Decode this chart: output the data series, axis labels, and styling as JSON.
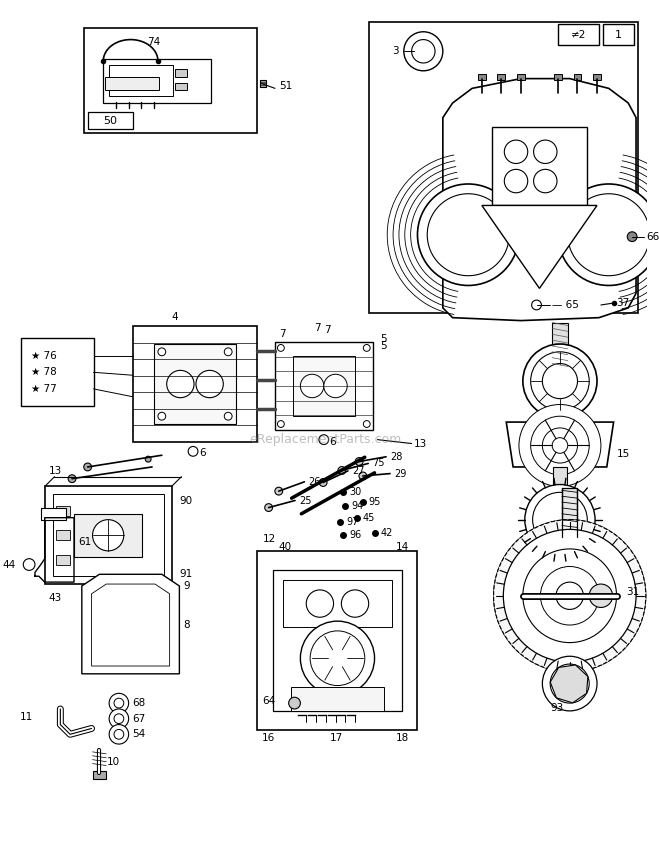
{
  "bg_color": "#ffffff",
  "watermark": "eReplacementParts.com",
  "fig_w": 6.59,
  "fig_h": 8.5,
  "dpi": 100
}
